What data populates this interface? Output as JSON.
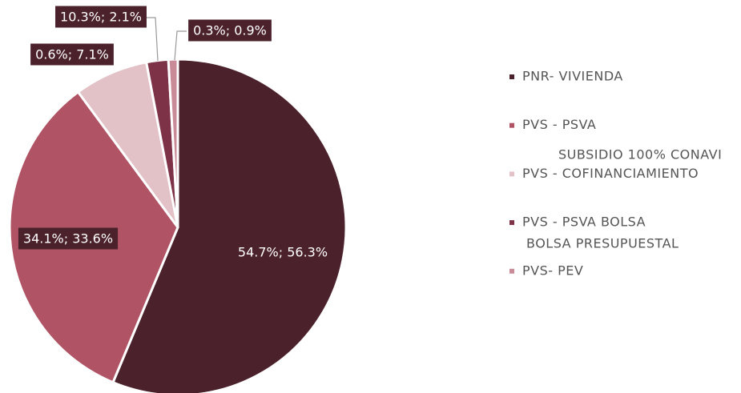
{
  "chart_data": {
    "type": "pie",
    "categories": [
      "PNR- VIVIENDA",
      "PVS - PSVA",
      "PVS - COFINANCIAMIENTO",
      "PVS - PSVA BOLSA",
      "PVS- PEV"
    ],
    "values": [
      56.3,
      33.6,
      7.1,
      2.1,
      0.9
    ],
    "value_labels": [
      "54.7%; 56.3%",
      "34.1%; 33.6%",
      "0.6%; 7.1%",
      "10.3%; 2.1%",
      "0.3%; 0.9%"
    ],
    "colors": [
      "#4b222b",
      "#b05465",
      "#e3c2c7",
      "#7d3247",
      "#c98b97"
    ],
    "annotations": [
      "SUBSIDIO 100% CONAVI",
      "BOLSA PRESUPUESTAL"
    ],
    "legend": "right"
  }
}
